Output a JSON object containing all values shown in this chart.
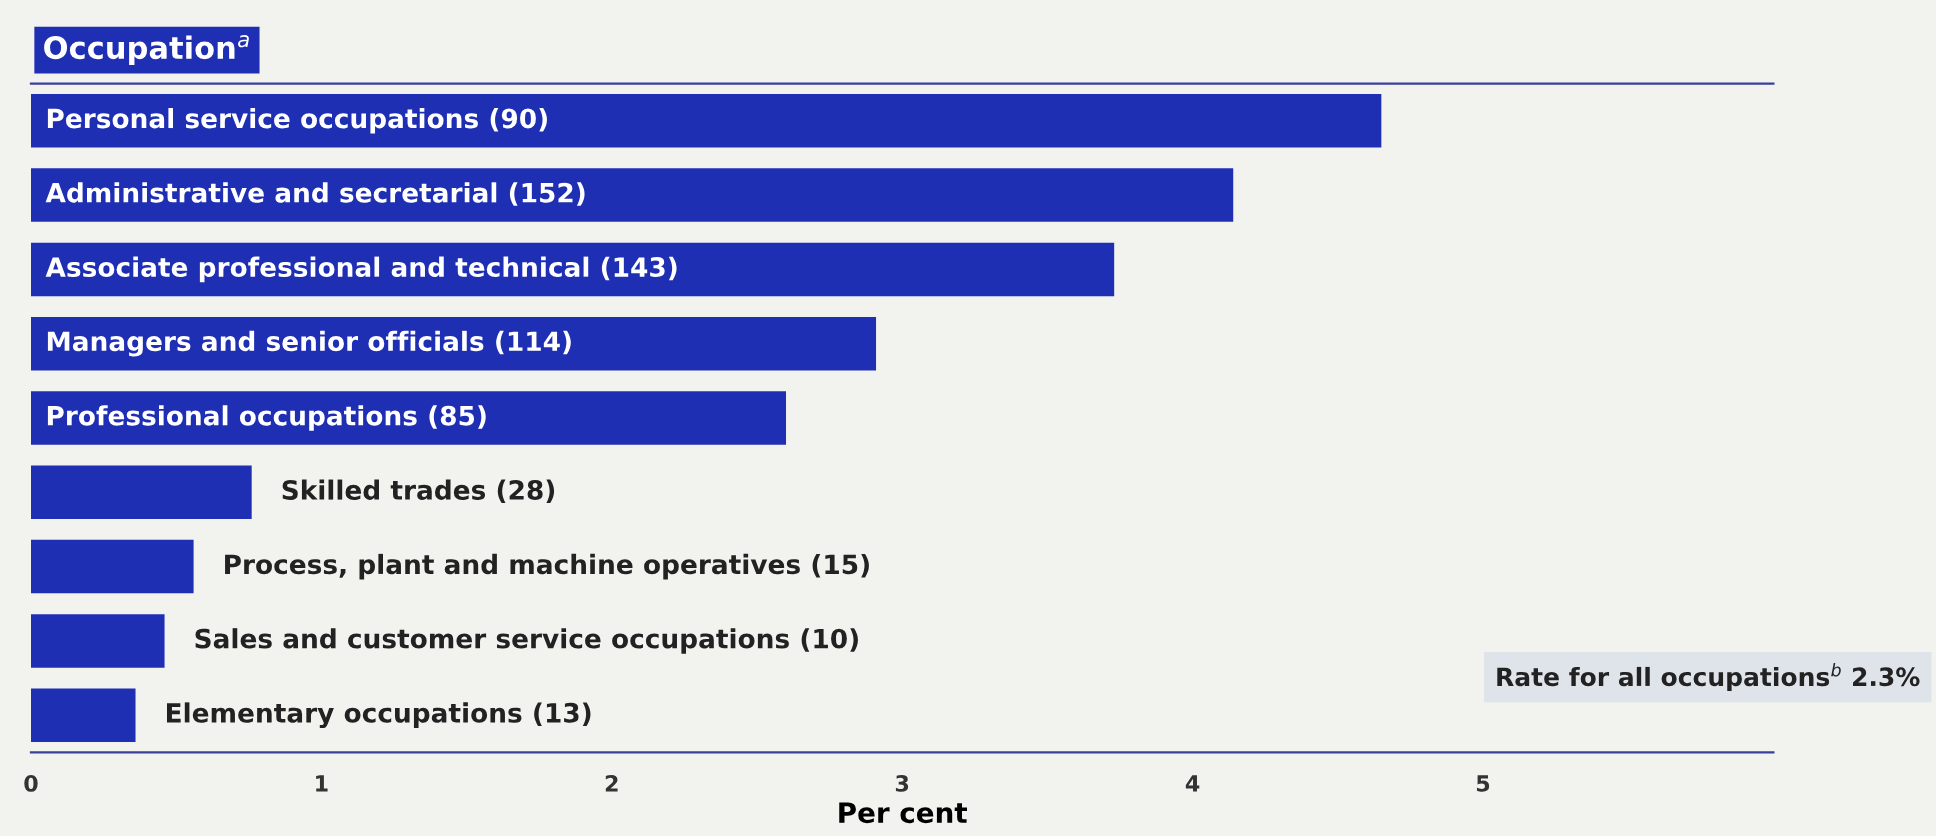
{
  "chart_data": {
    "type": "bar",
    "orientation": "horizontal",
    "ylabel": "Occupation$^{a}$",
    "xlabel": "Per cent",
    "categories": [
      "Personal service occupations (90)",
      "Administrative and secretarial (152)",
      "Associate professional and technical (143)",
      "Managers and senior officials (114)",
      "Professional occupations (85)",
      "Skilled trades (28)",
      "Process, plant and machine operatives (15)",
      "Sales and customer service occupations (10)",
      "Elementary occupations (13)"
    ],
    "values": [
      4.65,
      4.14,
      3.73,
      2.91,
      2.6,
      0.76,
      0.56,
      0.46,
      0.36
    ],
    "color": "#1f2fb4",
    "xlim": [
      0,
      6
    ],
    "xticks": [
      0,
      1,
      2,
      3,
      4,
      5
    ],
    "grid": false,
    "annotations": [
      "Rate for all occupations$^{b}$ 2.3%"
    ]
  }
}
